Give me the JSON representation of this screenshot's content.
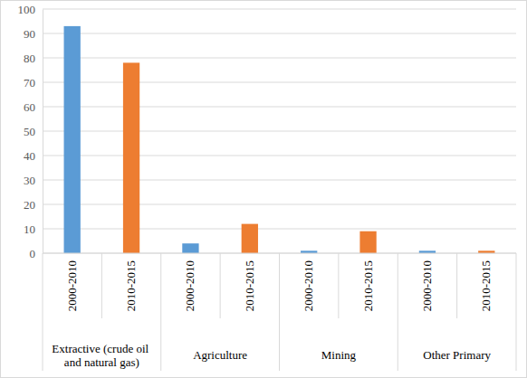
{
  "chart_data": {
    "type": "bar",
    "categories": [
      "Extractive (crude oil and natural gas)",
      "Agriculture",
      "Mining",
      "Other Primary"
    ],
    "series": [
      {
        "name": "2000-2010",
        "color": "#5b9bd5",
        "values": [
          93,
          4,
          1,
          1
        ]
      },
      {
        "name": "2010-2015",
        "color": "#ed7d31",
        "values": [
          78,
          12,
          9,
          1
        ]
      }
    ],
    "ylim": [
      0,
      100
    ],
    "yticks": [
      0,
      10,
      20,
      30,
      40,
      50,
      60,
      70,
      80,
      90,
      100
    ],
    "grid": true
  }
}
